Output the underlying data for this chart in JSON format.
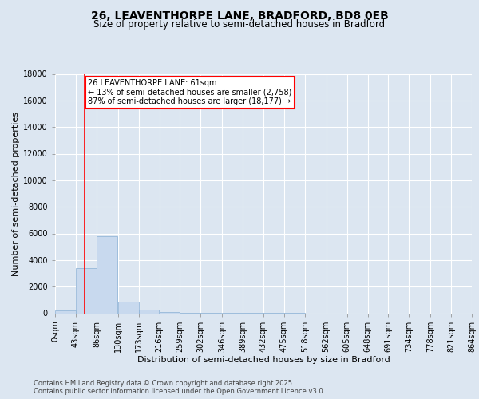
{
  "title_line1": "26, LEAVENTHORPE LANE, BRADFORD, BD8 0EB",
  "title_line2": "Size of property relative to semi-detached houses in Bradford",
  "xlabel": "Distribution of semi-detached houses by size in Bradford",
  "ylabel": "Number of semi-detached properties",
  "annotation_title": "26 LEAVENTHORPE LANE: 61sqm",
  "annotation_line2": "← 13% of semi-detached houses are smaller (2,758)",
  "annotation_line3": "87% of semi-detached houses are larger (18,177) →",
  "footer_line1": "Contains HM Land Registry data © Crown copyright and database right 2025.",
  "footer_line2": "Contains public sector information licensed under the Open Government Licence v3.0.",
  "bin_edges": [
    0,
    43,
    86,
    130,
    173,
    216,
    259,
    302,
    346,
    389,
    432,
    475,
    518,
    562,
    605,
    648,
    691,
    734,
    778,
    821,
    864
  ],
  "bin_labels": [
    "0sqm",
    "43sqm",
    "86sqm",
    "130sqm",
    "173sqm",
    "216sqm",
    "259sqm",
    "302sqm",
    "346sqm",
    "389sqm",
    "432sqm",
    "475sqm",
    "518sqm",
    "562sqm",
    "605sqm",
    "648sqm",
    "691sqm",
    "734sqm",
    "778sqm",
    "821sqm",
    "864sqm"
  ],
  "bar_values": [
    200,
    3400,
    5800,
    900,
    300,
    100,
    50,
    10,
    5,
    2,
    1,
    1,
    0,
    0,
    0,
    0,
    0,
    0,
    0,
    0
  ],
  "bar_color": "#c8d9ee",
  "bar_edgecolor": "#8ab0d4",
  "property_size": 61,
  "vline_color": "red",
  "ylim": [
    0,
    18000
  ],
  "yticks": [
    0,
    2000,
    4000,
    6000,
    8000,
    10000,
    12000,
    14000,
    16000,
    18000
  ],
  "background_color": "#dce6f1",
  "plot_bg_color": "#dce6f1",
  "grid_color": "white",
  "annotation_box_color": "white",
  "annotation_box_edgecolor": "red",
  "title_fontsize": 10,
  "subtitle_fontsize": 8.5,
  "axis_label_fontsize": 8,
  "tick_fontsize": 7,
  "annotation_fontsize": 7,
  "footer_fontsize": 6
}
